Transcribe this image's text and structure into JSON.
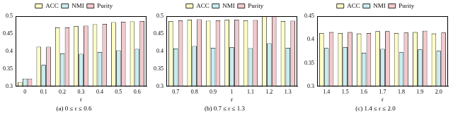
{
  "chart_data": [
    {
      "type": "bar",
      "title": "(a) 0 ≤ r ≤ 0.6",
      "x_label": "r",
      "categories": [
        "0",
        "0.1",
        "0.2",
        "0.3",
        "0.4",
        "0.5",
        "0.6"
      ],
      "series": [
        {
          "name": "ACC",
          "color": "#fdfdc6",
          "values": [
            0.312,
            0.413,
            0.468,
            0.472,
            0.477,
            0.483,
            0.485
          ]
        },
        {
          "name": "NMI",
          "color": "#c9ecf0",
          "values": [
            0.322,
            0.361,
            0.394,
            0.393,
            0.398,
            0.403,
            0.407
          ]
        },
        {
          "name": "Purity",
          "color": "#f3c9cd",
          "values": [
            0.322,
            0.413,
            0.468,
            0.473,
            0.478,
            0.484,
            0.486
          ]
        }
      ],
      "ylim": [
        0.3,
        0.5
      ],
      "yticks": [
        0.3,
        0.35,
        0.4,
        0.45,
        0.5
      ],
      "grid": false,
      "legend": "top"
    },
    {
      "type": "bar",
      "title": "(b) 0.7 ≤ r ≤ 1.3",
      "x_label": "r",
      "categories": [
        "0.7",
        "0.8",
        "0.9",
        "1",
        "1.1",
        "1.2",
        "1.3"
      ],
      "series": [
        {
          "name": "ACC",
          "color": "#fdfdc6",
          "values": [
            0.486,
            0.49,
            0.487,
            0.49,
            0.488,
            0.5,
            0.486
          ]
        },
        {
          "name": "NMI",
          "color": "#c9ecf0",
          "values": [
            0.408,
            0.415,
            0.41,
            0.412,
            0.409,
            0.423,
            0.41
          ]
        },
        {
          "name": "Purity",
          "color": "#f3c9cd",
          "values": [
            0.488,
            0.491,
            0.488,
            0.49,
            0.489,
            0.5,
            0.487
          ]
        }
      ],
      "ylim": [
        0.3,
        0.5
      ],
      "yticks": [
        0.3,
        0.35,
        0.4,
        0.45,
        0.5
      ],
      "grid": false,
      "legend": "top"
    },
    {
      "type": "bar",
      "title": "(c) 1.4 ≤ r ≤ 2.0",
      "x_label": "r",
      "categories": [
        "1.4",
        "1.5",
        "1.6",
        "1.7",
        "1.8",
        "1.9",
        "2.0"
      ],
      "series": [
        {
          "name": "ACC",
          "color": "#fdfdc6",
          "values": [
            0.414,
            0.414,
            0.413,
            0.418,
            0.414,
            0.416,
            0.413
          ]
        },
        {
          "name": "NMI",
          "color": "#c9ecf0",
          "values": [
            0.382,
            0.384,
            0.372,
            0.38,
            0.373,
            0.379,
            0.376
          ]
        },
        {
          "name": "Purity",
          "color": "#f3c9cd",
          "values": [
            0.416,
            0.416,
            0.414,
            0.418,
            0.415,
            0.419,
            0.415
          ]
        }
      ],
      "ylim": [
        0.3,
        0.45
      ],
      "yticks": [
        0.3,
        0.35,
        0.4,
        0.45
      ],
      "grid": false,
      "legend": "top"
    }
  ]
}
